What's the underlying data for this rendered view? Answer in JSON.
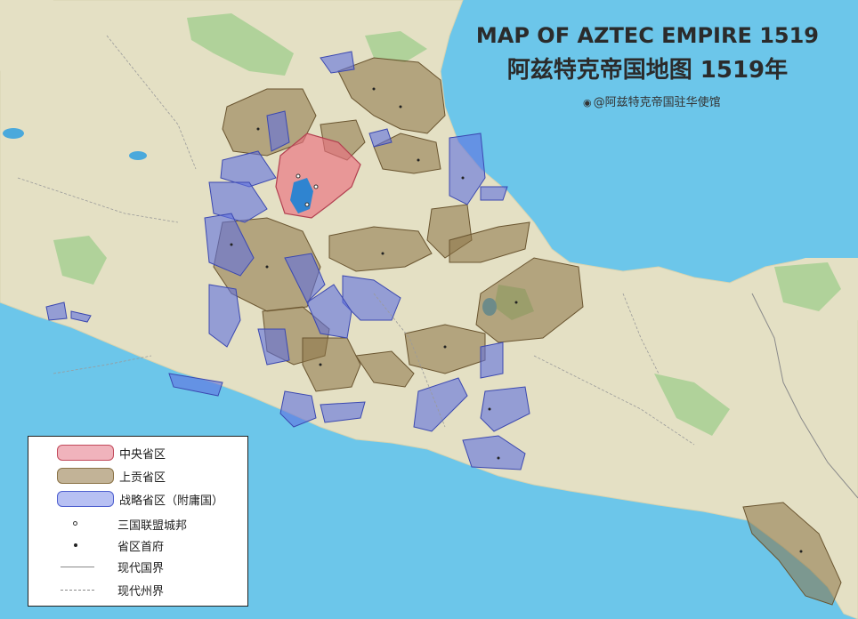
{
  "map": {
    "title_en": "MAP OF AZTEC EMPIRE  1519",
    "title_zh": "阿兹特克帝国地图 1519年",
    "credit_icon": "weibo-icon",
    "credit_text": "@阿兹特克帝国驻华使馆",
    "colors": {
      "ocean": "#6cc6ea",
      "land": "#e6e2c8",
      "central": "#e97f8f",
      "tributary": "#8a7245",
      "strategic": "#6372d6",
      "forest": "#8ec883"
    }
  },
  "legend": {
    "items": [
      {
        "label": "中央省区",
        "kind": "central"
      },
      {
        "label": "上贡省区",
        "kind": "tributary"
      },
      {
        "label": "战略省区（附庸国）",
        "kind": "strategic"
      },
      {
        "label": "三国联盟城邦",
        "kind": "alliance-city"
      },
      {
        "label": "省区首府",
        "kind": "provincial-capital"
      },
      {
        "label": "现代国界",
        "kind": "national-border"
      },
      {
        "label": "现代州界",
        "kind": "state-border"
      }
    ]
  }
}
